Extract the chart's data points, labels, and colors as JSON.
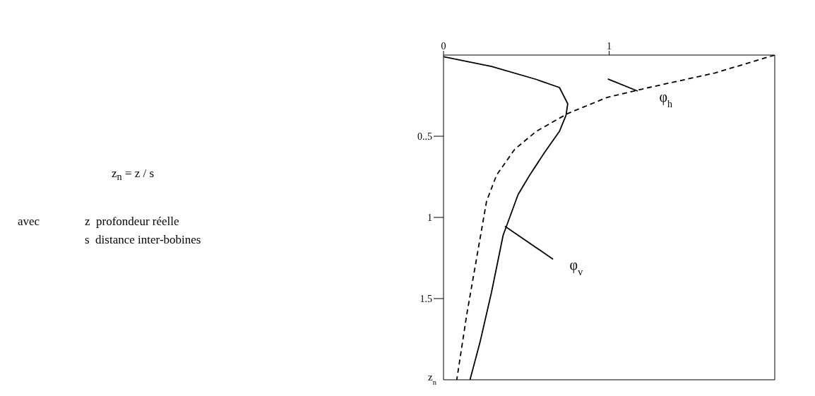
{
  "chart_data": {
    "type": "line",
    "ylabel": "z$_{n}$",
    "xlim": [
      0,
      2
    ],
    "xticks": [
      0,
      1
    ],
    "ylim": [
      2,
      0
    ],
    "yticks": [
      {
        "value": 0.5,
        "label": "0..5"
      },
      1,
      1.5
    ],
    "series": [
      {
        "name": "φ$_{h}$",
        "color": "#000000",
        "line_style": "dashed",
        "x": [
          2.0,
          1.64,
          1.24,
          0.99,
          0.75,
          0.56,
          0.43,
          0.32,
          0.26,
          0.2,
          0.14,
          0.08
        ],
        "values": [
          0,
          0.11,
          0.2,
          0.26,
          0.36,
          0.47,
          0.58,
          0.74,
          0.9,
          1.25,
          1.6,
          2.0
        ]
      },
      {
        "name": "φ$_{v}$",
        "color": "#000000",
        "line_style": "solid",
        "x": [
          0,
          0.29,
          0.56,
          0.7,
          0.75,
          0.74,
          0.7,
          0.61,
          0.52,
          0.45,
          0.36,
          0.29,
          0.22,
          0.16
        ],
        "values": [
          0.01,
          0.07,
          0.15,
          0.2,
          0.3,
          0.37,
          0.47,
          0.6,
          0.74,
          0.86,
          1.11,
          1.46,
          1.77,
          2.0
        ]
      }
    ],
    "annotations": [
      "z$_{n}$ = z / s",
      "avec",
      "z  profondeur réelle",
      "s  distance inter-bobines"
    ],
    "marker": "none",
    "grid": false,
    "legend": false
  }
}
